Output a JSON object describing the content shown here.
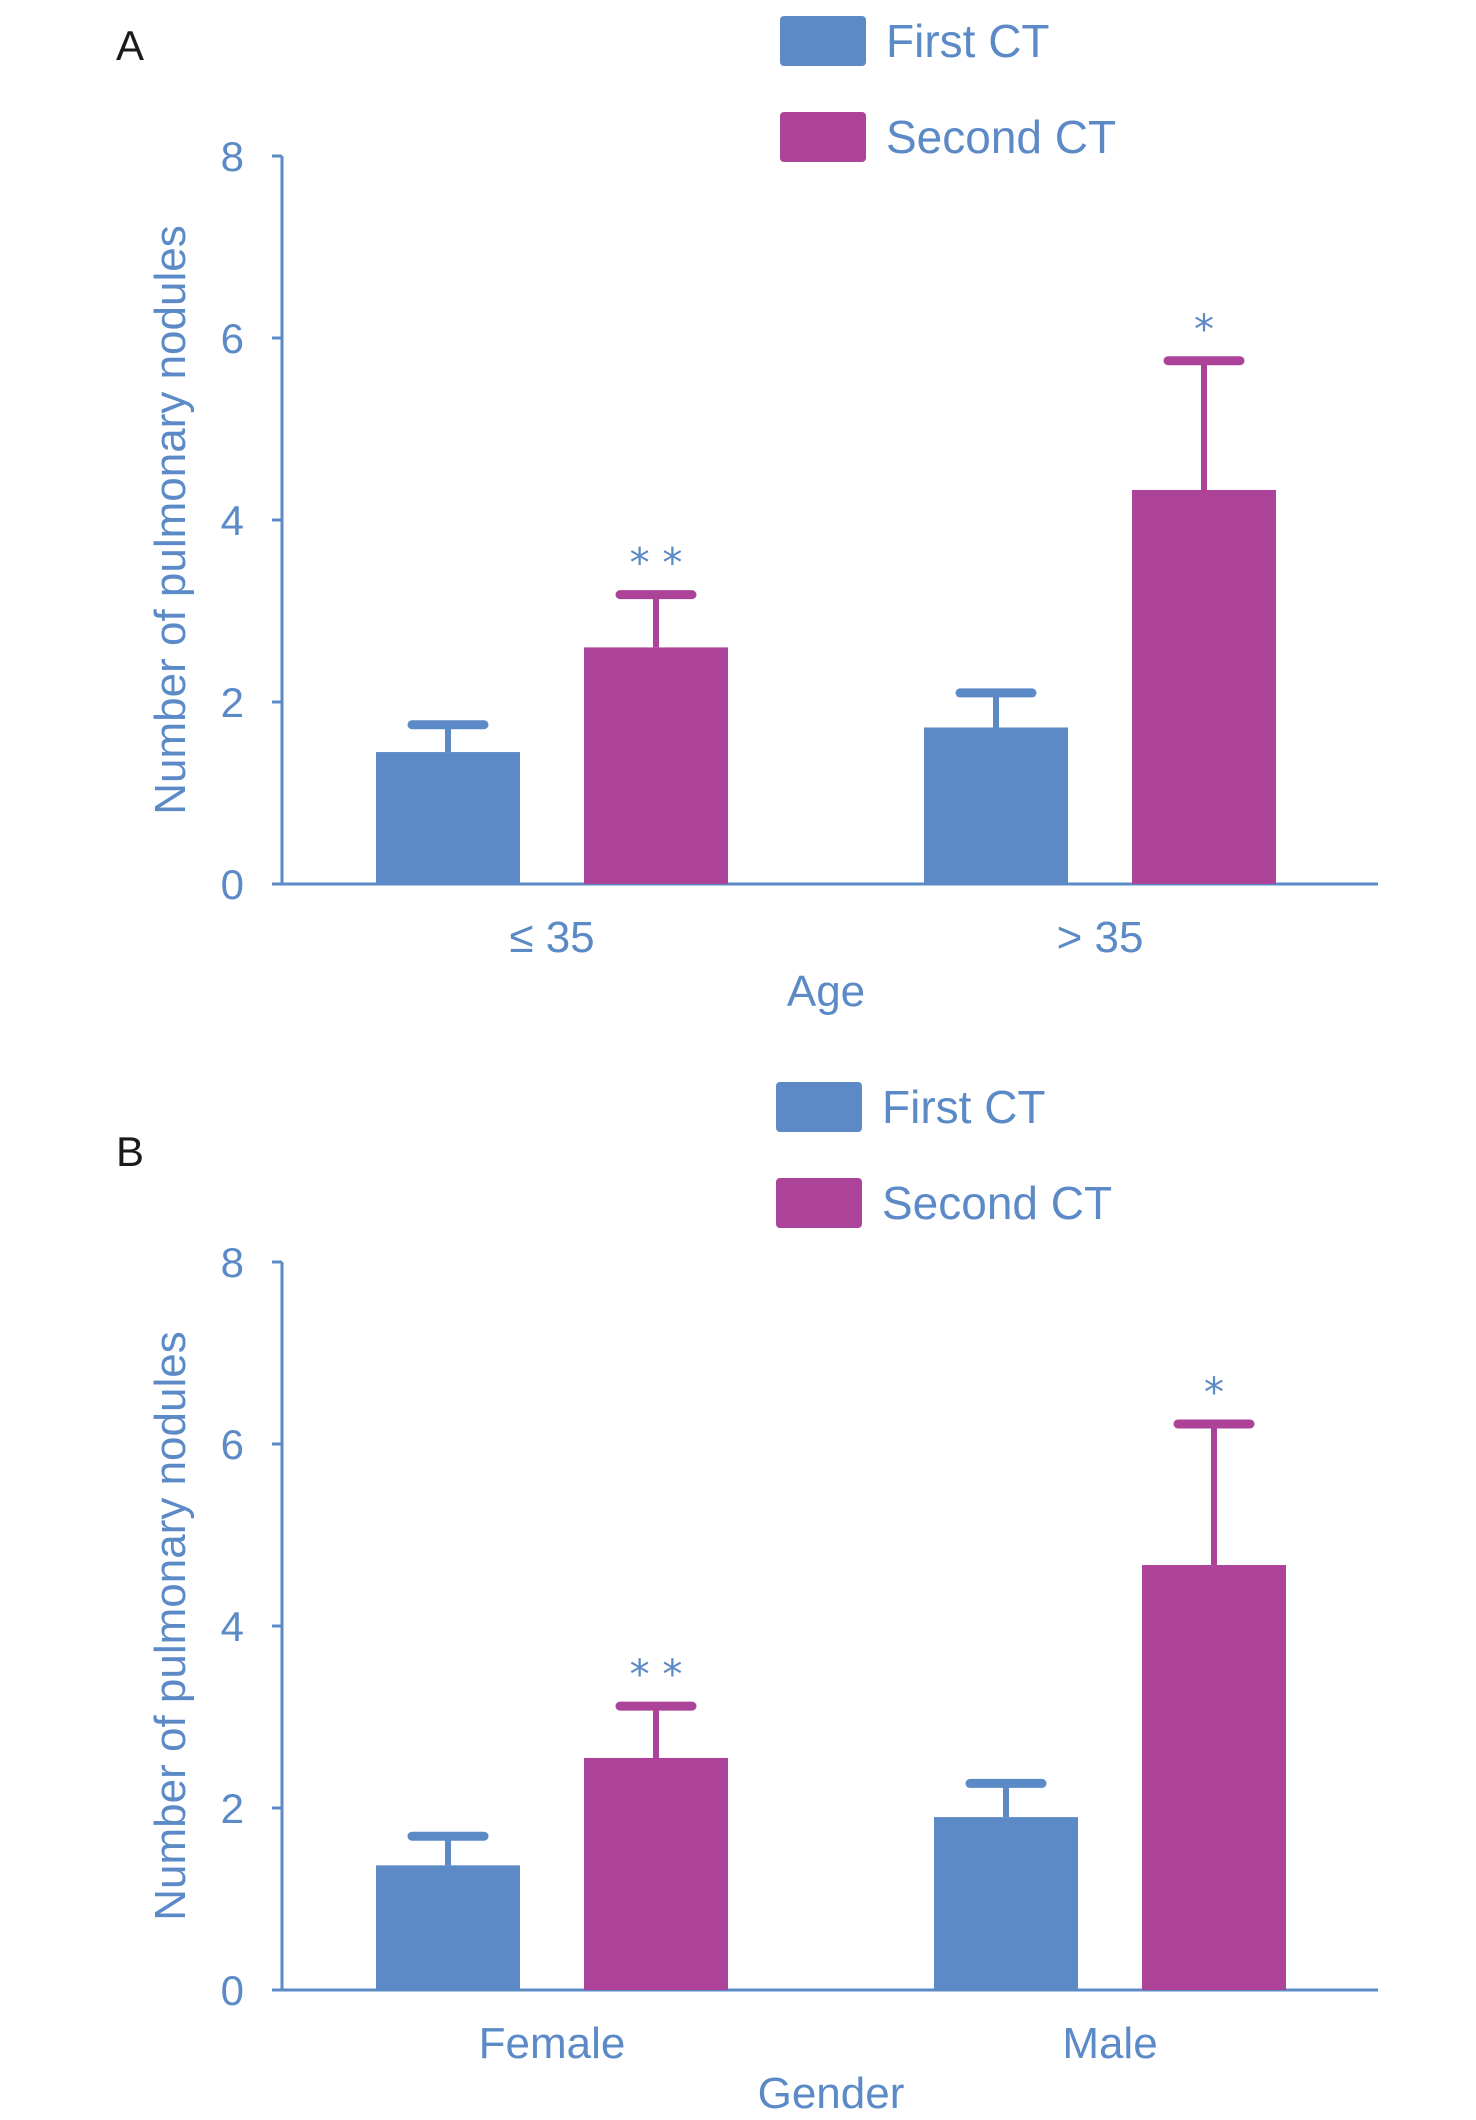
{
  "chart_data": [
    {
      "panel": "A",
      "type": "bar",
      "categories": [
        "≤ 35",
        "> 35"
      ],
      "series": [
        {
          "name": "First CT",
          "color": "#5b8ac7",
          "values": [
            1.45,
            1.72
          ],
          "error": [
            0.3,
            0.38
          ],
          "sig": [
            "",
            ""
          ]
        },
        {
          "name": "Second CT",
          "color": "#ac4398",
          "values": [
            2.6,
            4.33
          ],
          "error": [
            0.58,
            1.42
          ],
          "sig": [
            "* *",
            "*"
          ]
        }
      ],
      "xlabel": "Age",
      "ylabel": "Number of pulmonary nodules",
      "ylim": [
        0,
        8
      ],
      "yticks": [
        0,
        2,
        4,
        6,
        8
      ],
      "legend": "top-center",
      "grid": false
    },
    {
      "panel": "B",
      "type": "bar",
      "categories": [
        "Female",
        "Male"
      ],
      "series": [
        {
          "name": "First CT",
          "color": "#5b8ac7",
          "values": [
            1.37,
            1.9
          ],
          "error": [
            0.32,
            0.37
          ],
          "sig": [
            "",
            ""
          ]
        },
        {
          "name": "Second CT",
          "color": "#ac4398",
          "values": [
            2.55,
            4.67
          ],
          "error": [
            0.57,
            1.55
          ],
          "sig": [
            "* *",
            "*"
          ]
        }
      ],
      "xlabel": "Gender",
      "ylabel": "Number of pulmonary nodules",
      "ylim": [
        0,
        8
      ],
      "yticks": [
        0,
        2,
        4,
        6,
        8
      ],
      "legend": "top-center",
      "grid": false
    }
  ]
}
